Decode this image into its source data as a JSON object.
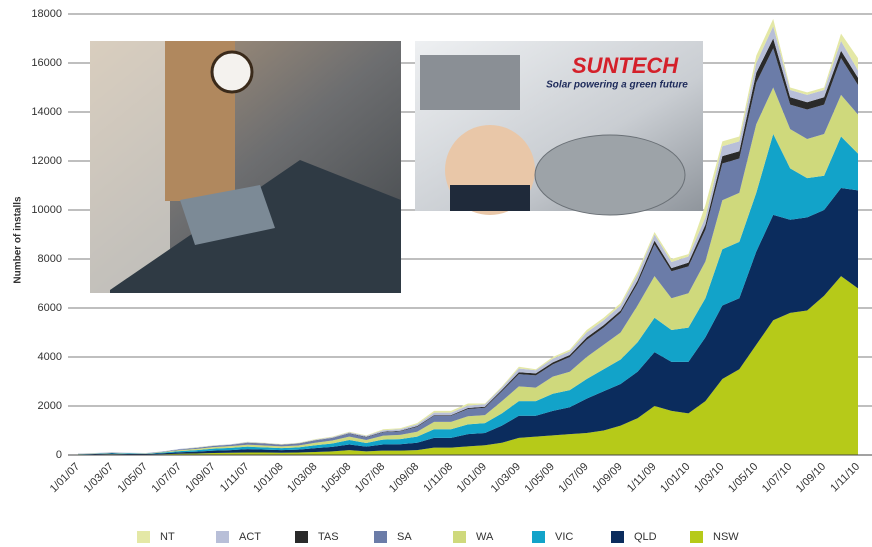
{
  "chart_data": {
    "type": "stacked-area",
    "y_label": "Number of installs",
    "annotations": [
      "SUNTECH",
      "Solar powering a green future"
    ],
    "ylim": [
      0,
      18000
    ],
    "yticks": [
      0,
      2000,
      4000,
      6000,
      8000,
      10000,
      12000,
      14000,
      16000,
      18000
    ],
    "grid": true,
    "legend": "bottom",
    "categories": [
      "1/01/07",
      null,
      "1/03/07",
      null,
      "1/05/07",
      null,
      "1/07/07",
      null,
      "1/09/07",
      null,
      "1/11/07",
      null,
      "1/01/08",
      null,
      "1/03/08",
      null,
      "1/05/08",
      null,
      "1/07/08",
      null,
      "1/09/08",
      null,
      "1/11/08",
      null,
      "1/01/09",
      null,
      "1/03/09",
      null,
      "1/05/09",
      null,
      "1/07/09",
      null,
      "1/09/09",
      null,
      "1/11/09",
      null,
      "1/01/10",
      null,
      "1/03/10",
      null,
      "1/05/10",
      null,
      "1/07/10",
      null,
      "1/09/10",
      null,
      "1/11/10"
    ],
    "series": [
      {
        "name": "NT",
        "color": "#e4e8a6",
        "values": [
          0,
          0,
          0,
          0,
          0,
          0,
          0,
          10,
          10,
          0,
          10,
          10,
          10,
          10,
          20,
          20,
          20,
          20,
          40,
          40,
          50,
          70,
          70,
          80,
          30,
          40,
          70,
          40,
          70,
          70,
          100,
          100,
          100,
          130,
          100,
          120,
          100,
          500,
          200,
          200,
          300,
          300,
          100,
          100,
          100,
          300,
          500
        ]
      },
      {
        "name": "ACT",
        "color": "#b8bfd8",
        "values": [
          0,
          10,
          10,
          10,
          10,
          10,
          20,
          20,
          20,
          20,
          30,
          20,
          20,
          20,
          30,
          30,
          40,
          40,
          60,
          60,
          70,
          100,
          100,
          100,
          100,
          100,
          150,
          130,
          150,
          150,
          200,
          200,
          200,
          250,
          250,
          250,
          250,
          300,
          400,
          400,
          400,
          500,
          300,
          300,
          300,
          400,
          300
        ]
      },
      {
        "name": "TAS",
        "color": "#2a2a2a",
        "values": [
          0,
          0,
          0,
          0,
          0,
          0,
          0,
          0,
          0,
          0,
          10,
          10,
          10,
          10,
          10,
          10,
          20,
          20,
          20,
          20,
          30,
          30,
          30,
          40,
          40,
          60,
          80,
          80,
          80,
          80,
          100,
          100,
          100,
          120,
          150,
          130,
          150,
          200,
          300,
          300,
          400,
          400,
          300,
          300,
          300,
          300,
          300
        ]
      },
      {
        "name": "SA",
        "color": "#6b7ca8",
        "values": [
          10,
          10,
          10,
          10,
          10,
          20,
          30,
          40,
          50,
          60,
          70,
          70,
          60,
          70,
          90,
          100,
          120,
          110,
          140,
          150,
          200,
          250,
          250,
          300,
          300,
          400,
          500,
          500,
          500,
          600,
          700,
          700,
          800,
          900,
          1300,
          1100,
          1100,
          1300,
          1500,
          1400,
          1700,
          1600,
          1000,
          1200,
          1200,
          1500,
          1200
        ]
      },
      {
        "name": "WA",
        "color": "#cfd97c",
        "values": [
          10,
          10,
          10,
          10,
          10,
          20,
          40,
          50,
          60,
          70,
          80,
          80,
          70,
          80,
          100,
          120,
          140,
          120,
          160,
          170,
          200,
          300,
          300,
          330,
          330,
          500,
          600,
          550,
          700,
          750,
          900,
          1000,
          1100,
          1500,
          1700,
          1300,
          1400,
          1500,
          2000,
          2000,
          2800,
          1900,
          1600,
          1600,
          1700,
          1700,
          1600
        ]
      },
      {
        "name": "VIC",
        "color": "#12a3c9",
        "values": [
          10,
          10,
          20,
          20,
          10,
          30,
          50,
          60,
          80,
          90,
          100,
          90,
          80,
          90,
          120,
          140,
          180,
          150,
          200,
          210,
          250,
          350,
          350,
          400,
          400,
          500,
          600,
          600,
          700,
          700,
          800,
          900,
          1000,
          1200,
          1400,
          1300,
          1400,
          1600,
          2300,
          2300,
          2400,
          3300,
          2100,
          1600,
          1400,
          2100,
          1500
        ]
      },
      {
        "name": "QLD",
        "color": "#0b2c5d",
        "values": [
          10,
          20,
          30,
          20,
          20,
          40,
          60,
          80,
          100,
          110,
          140,
          120,
          110,
          120,
          160,
          180,
          230,
          190,
          250,
          260,
          300,
          400,
          400,
          500,
          500,
          700,
          900,
          850,
          1000,
          1100,
          1400,
          1600,
          1700,
          1900,
          2200,
          2000,
          2100,
          2600,
          3000,
          2900,
          3800,
          4300,
          3800,
          3800,
          3500,
          3600,
          4000
        ]
      },
      {
        "name": "NSW",
        "color": "#b6ca19",
        "values": [
          10,
          20,
          30,
          20,
          20,
          30,
          50,
          60,
          80,
          90,
          100,
          100,
          90,
          100,
          120,
          150,
          200,
          150,
          180,
          180,
          200,
          300,
          300,
          350,
          400,
          500,
          700,
          750,
          800,
          850,
          900,
          1000,
          1200,
          1500,
          2000,
          1800,
          1700,
          2200,
          3100,
          3500,
          4500,
          5500,
          5800,
          5900,
          6500,
          7300,
          6800
        ]
      }
    ]
  }
}
